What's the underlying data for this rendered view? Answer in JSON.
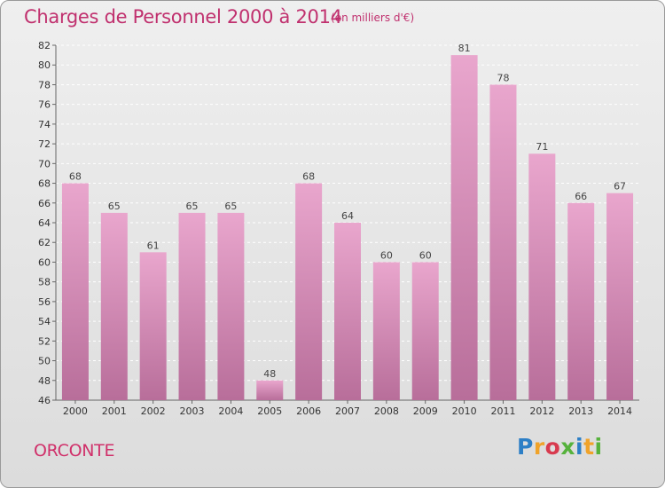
{
  "header": {
    "title": "Charges de Personnel 2000 à 2014",
    "unit_note": "(en milliers d'€)"
  },
  "footer": {
    "commune": "ORCONTE",
    "logo_text": "Proxiti"
  },
  "colors": {
    "accent": "#c0306e",
    "bar_top": "#e9a6cd",
    "bar_bottom": "#b86e9a"
  },
  "chart_data": {
    "type": "bar",
    "title": "Charges de Personnel 2000 à 2014",
    "subtitle": "(en milliers d'€)",
    "xlabel": "",
    "ylabel": "",
    "categories": [
      "2000",
      "2001",
      "2002",
      "2003",
      "2004",
      "2005",
      "2006",
      "2007",
      "2008",
      "2009",
      "2010",
      "2011",
      "2012",
      "2013",
      "2014"
    ],
    "values": [
      68,
      65,
      61,
      65,
      65,
      48,
      68,
      64,
      60,
      60,
      81,
      78,
      71,
      66,
      67
    ],
    "ylim": [
      46,
      82
    ],
    "yticks": [
      46,
      48,
      50,
      52,
      54,
      56,
      58,
      60,
      62,
      64,
      66,
      68,
      70,
      72,
      74,
      76,
      78,
      80,
      82
    ],
    "grid": true,
    "legend": "none"
  }
}
